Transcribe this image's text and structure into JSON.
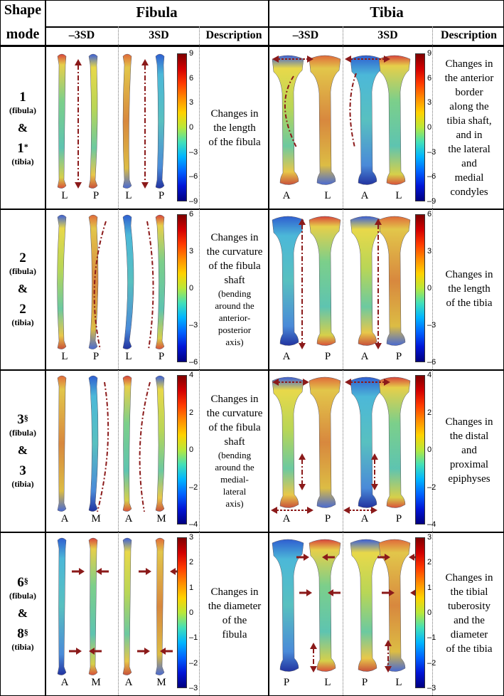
{
  "header": {
    "shape": "Shape",
    "mode": "mode",
    "fibula": "Fibula",
    "tibia": "Tibia",
    "neg": "–3SD",
    "pos": "3SD",
    "desc": "Description"
  },
  "rows": [
    {
      "mode_top": "1",
      "mode_top_sup": "",
      "mode_top_sub": "(fibula)",
      "amp": "&",
      "mode_bot": "1",
      "mode_bot_sup": "*",
      "mode_bot_sub": "(tibia)",
      "fib_desc": [
        "Changes in",
        "the length",
        "of the fibula"
      ],
      "fib_desc_small": [],
      "tib_desc": [
        "Changes in",
        "the anterior",
        "border",
        "along the",
        "tibia shaft,",
        "and in",
        "the lateral",
        "and",
        "medial",
        "condyles"
      ],
      "fib_views": [
        "L",
        "P",
        "L",
        "P"
      ],
      "tib_views": [
        "A",
        "L",
        "A",
        "L"
      ],
      "fib_scale": [
        "9",
        "6",
        "3",
        "0",
        "–3",
        "–6",
        "–9"
      ],
      "tib_scale": [
        "9",
        "6",
        "3",
        "0",
        "–3",
        "–6",
        "–9"
      ]
    },
    {
      "mode_top": "2",
      "mode_top_sup": "",
      "mode_top_sub": "(fibula)",
      "amp": "&",
      "mode_bot": "2",
      "mode_bot_sup": "",
      "mode_bot_sub": "(tibia)",
      "fib_desc": [
        "Changes in",
        "the curvature",
        "of the fibula",
        "shaft"
      ],
      "fib_desc_small": [
        "(bending",
        "around the",
        "anterior-",
        "posterior",
        "axis)"
      ],
      "tib_desc": [
        "Changes in",
        "the length",
        "of the tibia"
      ],
      "fib_views": [
        "L",
        "P",
        "L",
        "P"
      ],
      "tib_views": [
        "A",
        "P",
        "A",
        "P"
      ],
      "fib_scale": [
        "6",
        "3",
        "0",
        "–3",
        "–6"
      ],
      "tib_scale": [
        "6",
        "3",
        "0",
        "–3",
        "–6"
      ]
    },
    {
      "mode_top": "3",
      "mode_top_sup": "§",
      "mode_top_sub": "(fibula)",
      "amp": "&",
      "mode_bot": "3",
      "mode_bot_sup": "",
      "mode_bot_sub": "(tibia)",
      "fib_desc": [
        "Changes in",
        "the curvature",
        "of the fibula",
        "shaft"
      ],
      "fib_desc_small": [
        "(bending",
        "around the",
        "medial-",
        "lateral",
        "axis)"
      ],
      "tib_desc": [
        "Changes in",
        "the distal",
        "and",
        "proximal",
        "epiphyses"
      ],
      "fib_views": [
        "A",
        "M",
        "A",
        "M"
      ],
      "tib_views": [
        "A",
        "P",
        "A",
        "P"
      ],
      "fib_scale": [
        "4",
        "2",
        "0",
        "–2",
        "–4"
      ],
      "tib_scale": [
        "4",
        "2",
        "0",
        "–2",
        "–4"
      ]
    },
    {
      "mode_top": "6",
      "mode_top_sup": "§",
      "mode_top_sub": "(fibula)",
      "amp": "&",
      "mode_bot": "8",
      "mode_bot_sup": "§",
      "mode_bot_sub": "(tibia)",
      "fib_desc": [
        "Changes in",
        "the diameter",
        "of the",
        "fibula"
      ],
      "fib_desc_small": [],
      "tib_desc": [
        "Changes in",
        "the tibial",
        "tuberosity",
        "and the",
        "diameter",
        "of the tibia"
      ],
      "fib_views": [
        "A",
        "M",
        "A",
        "M"
      ],
      "tib_views": [
        "P",
        "L",
        "P",
        "L"
      ],
      "fib_scale": [
        "3",
        "2",
        "1",
        "0",
        "–1",
        "–2",
        "–3"
      ],
      "tib_scale": [
        "3",
        "2",
        "1",
        "0",
        "–1",
        "–2",
        "–3"
      ]
    }
  ],
  "colors": {
    "arrow": "#8b1a1a",
    "bone_hi": "#d9e050",
    "bone_mid": "#76c88e",
    "bone_lo": "#3aa0d0"
  }
}
